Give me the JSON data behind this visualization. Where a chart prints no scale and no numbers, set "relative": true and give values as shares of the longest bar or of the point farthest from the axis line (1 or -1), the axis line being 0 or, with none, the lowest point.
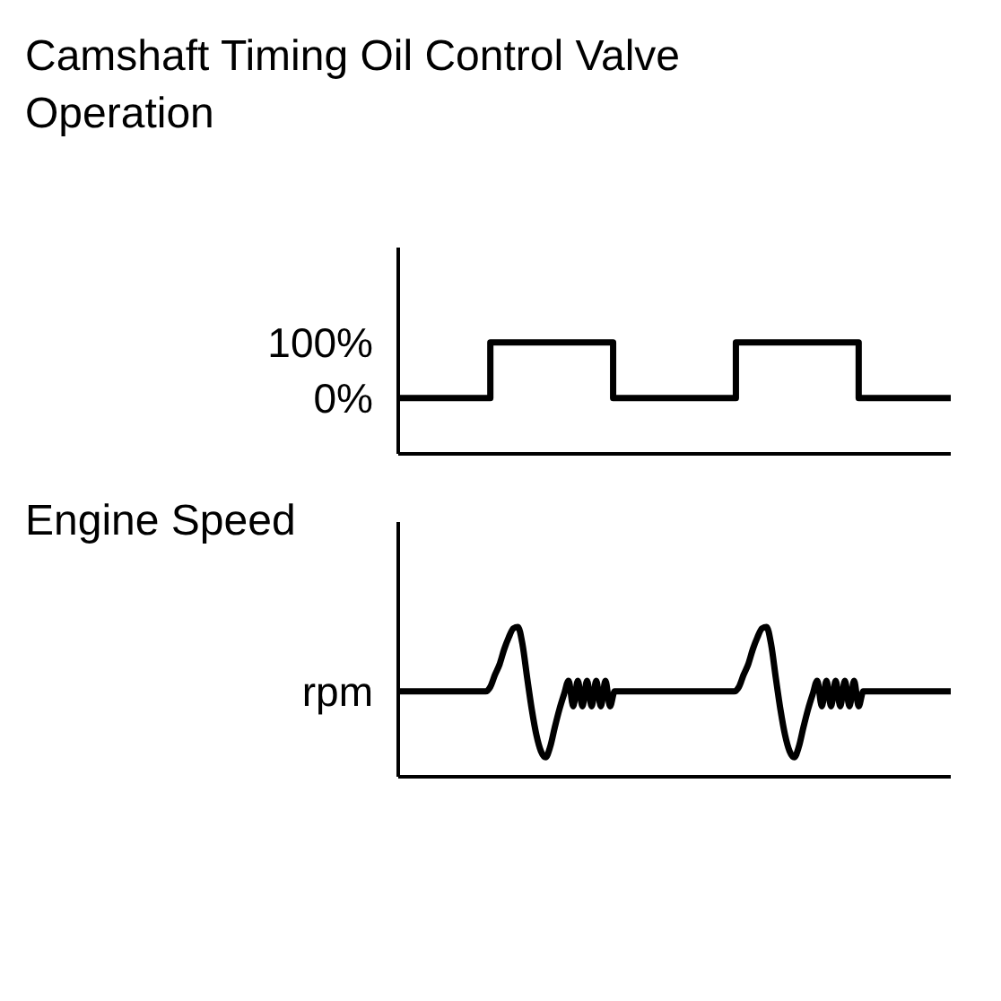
{
  "chart_data": [
    {
      "type": "step",
      "title": "Camshaft Timing Oil Control Valve Operation",
      "categories": [
        null,
        null,
        null,
        null,
        null,
        null,
        null,
        null,
        null,
        null,
        null,
        null,
        null,
        null,
        null,
        null,
        null,
        null,
        null
      ],
      "values": [
        0,
        0,
        0,
        100,
        100,
        100,
        100,
        0,
        0,
        0,
        0,
        100,
        100,
        100,
        100,
        0,
        0,
        0,
        0
      ],
      "color": "#000000",
      "ylim": [
        -100,
        270
      ],
      "yticks": [
        {
          "value": 0,
          "label": "0%"
        },
        {
          "value": 100,
          "label": "100%"
        }
      ],
      "tick_labels": "y",
      "marker": "none"
    },
    {
      "type": "line",
      "title": "Engine Speed",
      "relative": true,
      "categories": [
        null,
        null,
        null,
        null,
        null,
        null,
        null,
        null,
        null,
        null,
        null,
        null,
        null,
        null,
        null,
        null,
        null,
        null,
        null,
        null,
        null,
        null,
        null,
        null,
        null,
        null,
        null,
        null,
        null,
        null,
        null,
        null,
        null,
        null,
        null,
        null,
        null,
        null,
        null,
        null,
        null,
        null,
        null,
        null,
        null,
        null,
        null,
        null,
        null,
        null,
        null,
        null,
        null,
        null,
        null,
        null,
        null,
        null,
        null,
        null,
        null,
        null,
        null,
        null,
        null,
        null,
        null,
        null,
        null,
        null,
        null,
        null,
        null,
        null,
        null,
        null,
        null,
        null,
        null,
        null,
        null,
        null,
        null,
        null,
        null,
        null,
        null,
        null,
        null,
        null,
        null,
        null,
        null,
        null,
        null,
        null,
        null,
        null,
        null,
        null,
        null,
        null,
        null,
        null,
        null,
        null,
        null,
        null,
        null,
        null,
        null,
        null,
        null,
        null,
        null,
        null,
        null,
        null,
        null,
        null,
        null
      ],
      "values": [
        0.57,
        0.57,
        0.57,
        0.57,
        0.57,
        0.57,
        0.57,
        0.57,
        0.57,
        0.57,
        0.57,
        0.57,
        0.57,
        0.57,
        0.57,
        0.57,
        0.57,
        0.57,
        0.57,
        0.57,
        0.6,
        0.68,
        0.75,
        0.85,
        0.93,
        0.99,
        1,
        0.88,
        0.66,
        0.45,
        0.28,
        0.17,
        0.13,
        0.2,
        0.33,
        0.45,
        0.55,
        0.64,
        0.47,
        0.64,
        0.47,
        0.64,
        0.47,
        0.64,
        0.47,
        0.64,
        0.47,
        0.57,
        0.57,
        0.57,
        0.57,
        0.57,
        0.57,
        0.57,
        0.57,
        0.57,
        0.57,
        0.57,
        0.57,
        0.57,
        0.57,
        0.57,
        0.57,
        0.57,
        0.57,
        0.57,
        0.57,
        0.57,
        0.57,
        0.57,
        0.57,
        0.57,
        0.57,
        0.57,
        0.6,
        0.68,
        0.75,
        0.85,
        0.93,
        0.99,
        1,
        0.88,
        0.66,
        0.45,
        0.28,
        0.17,
        0.13,
        0.2,
        0.33,
        0.45,
        0.55,
        0.64,
        0.47,
        0.64,
        0.47,
        0.64,
        0.47,
        0.64,
        0.47,
        0.64,
        0.47,
        0.57,
        0.57,
        0.57,
        0.57,
        0.57,
        0.57,
        0.57,
        0.57,
        0.57,
        0.57,
        0.57,
        0.57,
        0.57,
        0.57,
        0.57,
        0.57,
        0.57,
        0.57,
        0.57,
        0.57
      ],
      "color": "#000000",
      "annotations": [
        "rpm"
      ],
      "marker": "none"
    }
  ]
}
